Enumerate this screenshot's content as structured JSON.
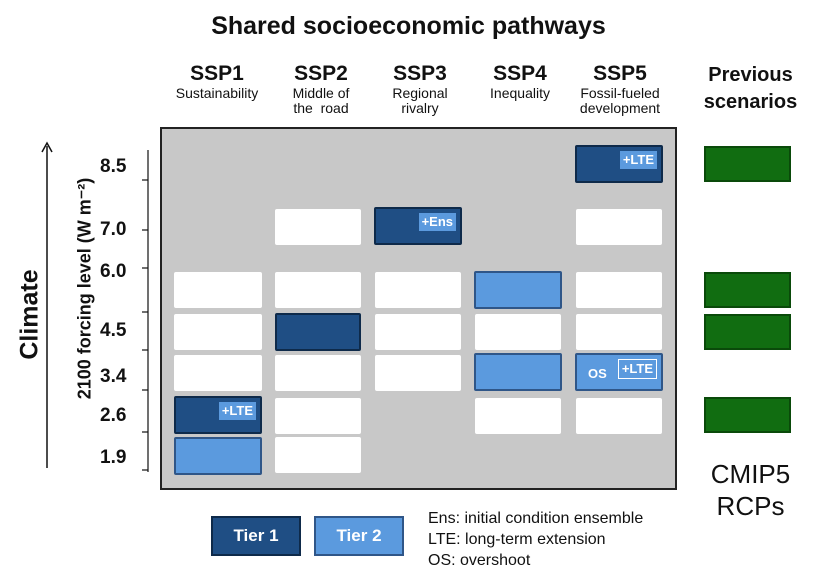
{
  "title": "Shared socioeconomic pathways",
  "ssps": [
    {
      "name": "SSP1",
      "subtitle": [
        "Sustainability"
      ]
    },
    {
      "name": "SSP2",
      "subtitle": [
        "Middle of",
        "the  road"
      ]
    },
    {
      "name": "SSP3",
      "subtitle": [
        "Regional",
        "rivalry"
      ]
    },
    {
      "name": "SSP4",
      "subtitle": [
        "Inequality"
      ]
    },
    {
      "name": "SSP5",
      "subtitle": [
        "Fossil-fueled",
        "development"
      ]
    }
  ],
  "previous": {
    "label": [
      "Previous",
      "scenarios"
    ],
    "footer": [
      "CMIP5",
      "RCPs"
    ]
  },
  "y_axis": {
    "label": "2100 forcing level (W m⁻²)",
    "axis_title": "Climate"
  },
  "levels": [
    "8.5",
    "7.0",
    "6.0",
    "4.5",
    "3.4",
    "2.6",
    "1.9"
  ],
  "colors": {
    "tier1": "#1f4e84",
    "tier2": "#5b9ade",
    "previous": "#116d11",
    "panel": "#c8c8c8"
  },
  "matrix": {
    "SSP1": {
      "6.0": "white",
      "4.5": "white",
      "3.4": "white",
      "2.6": "tier1",
      "1.9": "tier2"
    },
    "SSP2": {
      "7.0": "white",
      "6.0": "white",
      "4.5": "tier1",
      "3.4": "white",
      "2.6": "white",
      "1.9": "white"
    },
    "SSP3": {
      "7.0": "tier1",
      "6.0": "white",
      "4.5": "white",
      "3.4": "white"
    },
    "SSP4": {
      "6.0": "tier2",
      "4.5": "white",
      "3.4": "tier2",
      "2.6": "white"
    },
    "SSP5": {
      "8.5": "tier1",
      "7.0": "white",
      "6.0": "white",
      "4.5": "white",
      "3.4": "tier2",
      "2.6": "white"
    }
  },
  "tags": {
    "ssp5_85": "+LTE",
    "ssp3_70": "+Ens",
    "ssp5_34_os": "OS",
    "ssp5_34_lte": "+LTE",
    "ssp1_26": "+LTE"
  },
  "previous_levels": [
    "8.5",
    "6.0",
    "4.5",
    "2.6"
  ],
  "legend": {
    "tier1": "Tier 1",
    "tier2": "Tier 2"
  },
  "notes": [
    "Ens: initial condition ensemble",
    "LTE: long-term extension",
    "OS: overshoot"
  ]
}
